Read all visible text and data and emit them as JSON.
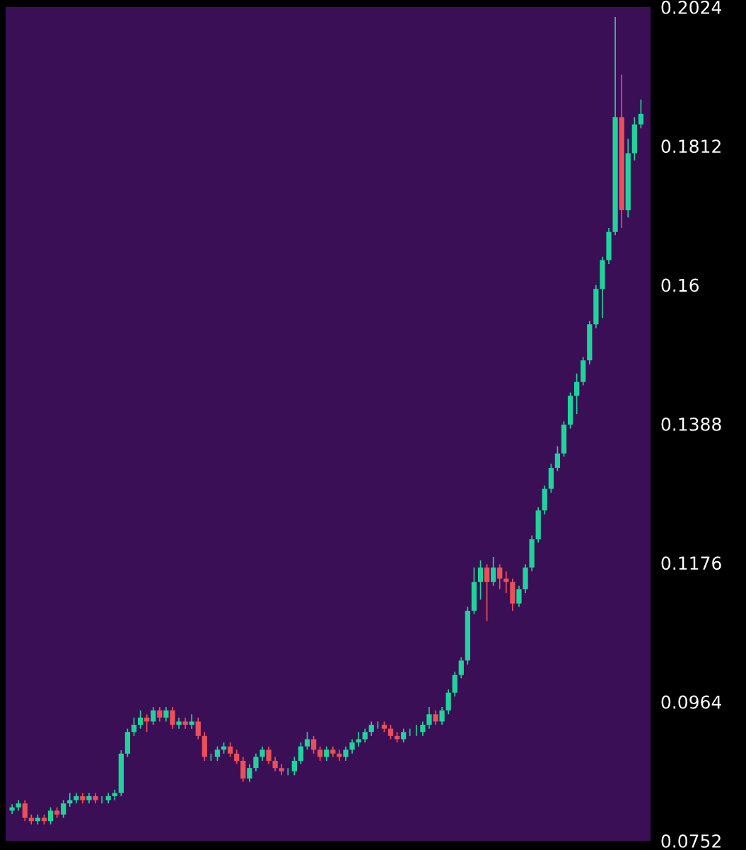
{
  "chart_data": {
    "type": "candlestick",
    "categories": [
      null,
      null,
      null,
      null,
      null,
      null,
      null,
      null,
      null,
      null,
      null,
      null,
      null,
      null,
      null,
      null,
      null,
      null,
      null,
      null,
      null,
      null,
      null,
      null,
      null,
      null,
      null,
      null,
      null,
      null,
      null,
      null,
      null,
      null,
      null,
      null,
      null,
      null,
      null,
      null,
      null,
      null,
      null,
      null,
      null,
      null,
      null,
      null,
      null,
      null,
      null,
      null,
      null,
      null,
      null,
      null,
      null,
      null,
      null,
      null,
      null,
      null,
      null,
      null,
      null,
      null,
      null,
      null,
      null,
      null,
      null,
      null,
      null,
      null,
      null,
      null,
      null,
      null,
      null,
      null,
      null,
      null,
      null,
      null,
      null,
      null,
      null,
      null,
      null,
      null,
      null,
      null,
      null,
      null,
      null,
      null,
      null,
      null,
      null
    ],
    "ohlc": [
      [
        0.0798,
        0.0808,
        0.0793,
        0.0803
      ],
      [
        0.0803,
        0.0814,
        0.0798,
        0.0809
      ],
      [
        0.0809,
        0.0814,
        0.0782,
        0.0787
      ],
      [
        0.0787,
        0.0792,
        0.0777,
        0.0782
      ],
      [
        0.0782,
        0.0792,
        0.0777,
        0.0787
      ],
      [
        0.0787,
        0.0792,
        0.0777,
        0.0782
      ],
      [
        0.0782,
        0.0803,
        0.0777,
        0.0798
      ],
      [
        0.0798,
        0.0803,
        0.0787,
        0.0792
      ],
      [
        0.0792,
        0.0814,
        0.0787,
        0.0809
      ],
      [
        0.0809,
        0.0825,
        0.0804,
        0.0814
      ],
      [
        0.0814,
        0.0825,
        0.0809,
        0.082
      ],
      [
        0.082,
        0.0825,
        0.0809,
        0.0814
      ],
      [
        0.0814,
        0.0825,
        0.0809,
        0.082
      ],
      [
        0.082,
        0.0825,
        0.0809,
        0.0814
      ],
      [
        0.0814,
        0.082,
        0.0809,
        0.0814
      ],
      [
        0.0814,
        0.0825,
        0.0809,
        0.082
      ],
      [
        0.082,
        0.083,
        0.0814,
        0.0825
      ],
      [
        0.0825,
        0.089,
        0.082,
        0.0885
      ],
      [
        0.0885,
        0.0923,
        0.088,
        0.0918
      ],
      [
        0.0918,
        0.094,
        0.0912,
        0.0929
      ],
      [
        0.0929,
        0.0951,
        0.0923,
        0.094
      ],
      [
        0.094,
        0.0945,
        0.0918,
        0.0934
      ],
      [
        0.0934,
        0.0956,
        0.0929,
        0.0951
      ],
      [
        0.0951,
        0.0956,
        0.0934,
        0.094
      ],
      [
        0.094,
        0.0956,
        0.0934,
        0.0951
      ],
      [
        0.0951,
        0.0956,
        0.0923,
        0.0929
      ],
      [
        0.0929,
        0.094,
        0.0923,
        0.0934
      ],
      [
        0.0934,
        0.094,
        0.0923,
        0.0929
      ],
      [
        0.0929,
        0.0945,
        0.0923,
        0.0934
      ],
      [
        0.0934,
        0.094,
        0.0907,
        0.0912
      ],
      [
        0.0912,
        0.0918,
        0.0874,
        0.088
      ],
      [
        0.088,
        0.0885,
        0.0874,
        0.088
      ],
      [
        0.088,
        0.0896,
        0.0874,
        0.0891
      ],
      [
        0.0891,
        0.0902,
        0.0885,
        0.0896
      ],
      [
        0.0896,
        0.0902,
        0.088,
        0.0885
      ],
      [
        0.0885,
        0.0891,
        0.0869,
        0.0874
      ],
      [
        0.0874,
        0.088,
        0.0842,
        0.0847
      ],
      [
        0.0847,
        0.0869,
        0.0842,
        0.0863
      ],
      [
        0.0863,
        0.0885,
        0.0858,
        0.088
      ],
      [
        0.088,
        0.0896,
        0.0874,
        0.0891
      ],
      [
        0.0891,
        0.0896,
        0.0869,
        0.0874
      ],
      [
        0.0874,
        0.088,
        0.0858,
        0.0863
      ],
      [
        0.0863,
        0.0869,
        0.0852,
        0.0858
      ],
      [
        0.0858,
        0.0863,
        0.0852,
        0.0858
      ],
      [
        0.0858,
        0.088,
        0.0852,
        0.0874
      ],
      [
        0.0874,
        0.0902,
        0.0869,
        0.0896
      ],
      [
        0.0896,
        0.0918,
        0.0891,
        0.0907
      ],
      [
        0.0907,
        0.0912,
        0.0885,
        0.0891
      ],
      [
        0.0891,
        0.0896,
        0.0874,
        0.088
      ],
      [
        0.088,
        0.0896,
        0.0874,
        0.0891
      ],
      [
        0.0891,
        0.0896,
        0.088,
        0.0885
      ],
      [
        0.0885,
        0.0891,
        0.0874,
        0.088
      ],
      [
        0.088,
        0.0896,
        0.0874,
        0.0891
      ],
      [
        0.0891,
        0.0907,
        0.0885,
        0.0902
      ],
      [
        0.0902,
        0.0918,
        0.0896,
        0.0907
      ],
      [
        0.0907,
        0.0923,
        0.0902,
        0.0918
      ],
      [
        0.0918,
        0.0934,
        0.0912,
        0.0929
      ],
      [
        0.0929,
        0.0934,
        0.0923,
        0.0929
      ],
      [
        0.0929,
        0.0934,
        0.0918,
        0.0923
      ],
      [
        0.0923,
        0.0929,
        0.0907,
        0.0912
      ],
      [
        0.0912,
        0.0918,
        0.0902,
        0.0907
      ],
      [
        0.0907,
        0.0923,
        0.0902,
        0.0918
      ],
      [
        0.0918,
        0.0923,
        0.0912,
        0.0918
      ],
      [
        0.0918,
        0.0929,
        0.0912,
        0.0918
      ],
      [
        0.0918,
        0.0934,
        0.0912,
        0.0929
      ],
      [
        0.0929,
        0.0956,
        0.0923,
        0.0945
      ],
      [
        0.0945,
        0.0951,
        0.0929,
        0.0934
      ],
      [
        0.0934,
        0.0956,
        0.0929,
        0.0951
      ],
      [
        0.0951,
        0.0983,
        0.0945,
        0.0978
      ],
      [
        0.0978,
        0.101,
        0.0972,
        0.1005
      ],
      [
        0.1005,
        0.1032,
        0.1,
        0.1027
      ],
      [
        0.1027,
        0.1109,
        0.1021,
        0.1103
      ],
      [
        0.1103,
        0.1169,
        0.1098,
        0.1147
      ],
      [
        0.1147,
        0.118,
        0.112,
        0.1169
      ],
      [
        0.1169,
        0.1174,
        0.1087,
        0.1147
      ],
      [
        0.1147,
        0.1185,
        0.1141,
        0.1169
      ],
      [
        0.1169,
        0.1174,
        0.1136,
        0.1152
      ],
      [
        0.1152,
        0.1163,
        0.113,
        0.1147
      ],
      [
        0.1147,
        0.1152,
        0.1103,
        0.1114
      ],
      [
        0.1114,
        0.1141,
        0.1109,
        0.1136
      ],
      [
        0.1136,
        0.1174,
        0.113,
        0.1169
      ],
      [
        0.1169,
        0.1218,
        0.1163,
        0.1212
      ],
      [
        0.1212,
        0.1261,
        0.1207,
        0.1256
      ],
      [
        0.1256,
        0.1294,
        0.125,
        0.1289
      ],
      [
        0.1289,
        0.1327,
        0.1283,
        0.1321
      ],
      [
        0.1321,
        0.1354,
        0.1316,
        0.1343
      ],
      [
        0.1343,
        0.1392,
        0.1338,
        0.1387
      ],
      [
        0.1387,
        0.1436,
        0.1381,
        0.1431
      ],
      [
        0.1431,
        0.1465,
        0.1403,
        0.1452
      ],
      [
        0.1452,
        0.149,
        0.1447,
        0.1485
      ],
      [
        0.1485,
        0.1545,
        0.1479,
        0.154
      ],
      [
        0.154,
        0.16,
        0.1534,
        0.1594
      ],
      [
        0.1594,
        0.1643,
        0.155,
        0.1638
      ],
      [
        0.1638,
        0.1687,
        0.1632,
        0.1681
      ],
      [
        0.1681,
        0.2009,
        0.1676,
        0.1856
      ],
      [
        0.1856,
        0.1921,
        0.1687,
        0.1714
      ],
      [
        0.1714,
        0.1823,
        0.1703,
        0.1801
      ],
      [
        0.1801,
        0.1856,
        0.179,
        0.1845
      ],
      [
        0.1845,
        0.1883,
        0.1839,
        0.1861
      ]
    ],
    "colors": [
      "#20d39b",
      "#20d39b",
      "#e9505a",
      "#e9505a",
      "#20d39b",
      "#e9505a",
      "#20d39b",
      "#e9505a",
      "#20d39b",
      "#20d39b",
      "#20d39b",
      "#e9505a",
      "#20d39b",
      "#e9505a",
      "#20d39b",
      "#20d39b",
      "#20d39b",
      "#20d39b",
      "#20d39b",
      "#20d39b",
      "#20d39b",
      "#e9505a",
      "#20d39b",
      "#e9505a",
      "#20d39b",
      "#e9505a",
      "#20d39b",
      "#e9505a",
      "#20d39b",
      "#e9505a",
      "#e9505a",
      "#20d39b",
      "#20d39b",
      "#20d39b",
      "#e9505a",
      "#e9505a",
      "#e9505a",
      "#20d39b",
      "#20d39b",
      "#20d39b",
      "#e9505a",
      "#e9505a",
      "#e9505a",
      "#20d39b",
      "#20d39b",
      "#20d39b",
      "#20d39b",
      "#e9505a",
      "#e9505a",
      "#20d39b",
      "#e9505a",
      "#e9505a",
      "#20d39b",
      "#20d39b",
      "#20d39b",
      "#20d39b",
      "#20d39b",
      "#20d39b",
      "#e9505a",
      "#e9505a",
      "#e9505a",
      "#20d39b",
      "#20d39b",
      "#20d39b",
      "#20d39b",
      "#20d39b",
      "#e9505a",
      "#20d39b",
      "#20d39b",
      "#20d39b",
      "#20d39b",
      "#20d39b",
      "#20d39b",
      "#20d39b",
      "#e9505a",
      "#20d39b",
      "#e9505a",
      "#e9505a",
      "#e9505a",
      "#20d39b",
      "#20d39b",
      "#20d39b",
      "#20d39b",
      "#20d39b",
      "#20d39b",
      "#20d39b",
      "#20d39b",
      "#20d39b",
      "#20d39b",
      "#20d39b",
      "#20d39b",
      "#20d39b",
      "#20d39b",
      "#20d39b",
      "#20d39b",
      "#e9505a",
      "#20d39b",
      "#20d39b",
      "#20d39b"
    ],
    "ylim": [
      0.0752,
      0.2024
    ],
    "yticks": [
      0.0752,
      0.0964,
      0.1176,
      0.1388,
      0.16,
      0.1812,
      0.2024
    ],
    "tick_labels": "y",
    "grid": false
  }
}
